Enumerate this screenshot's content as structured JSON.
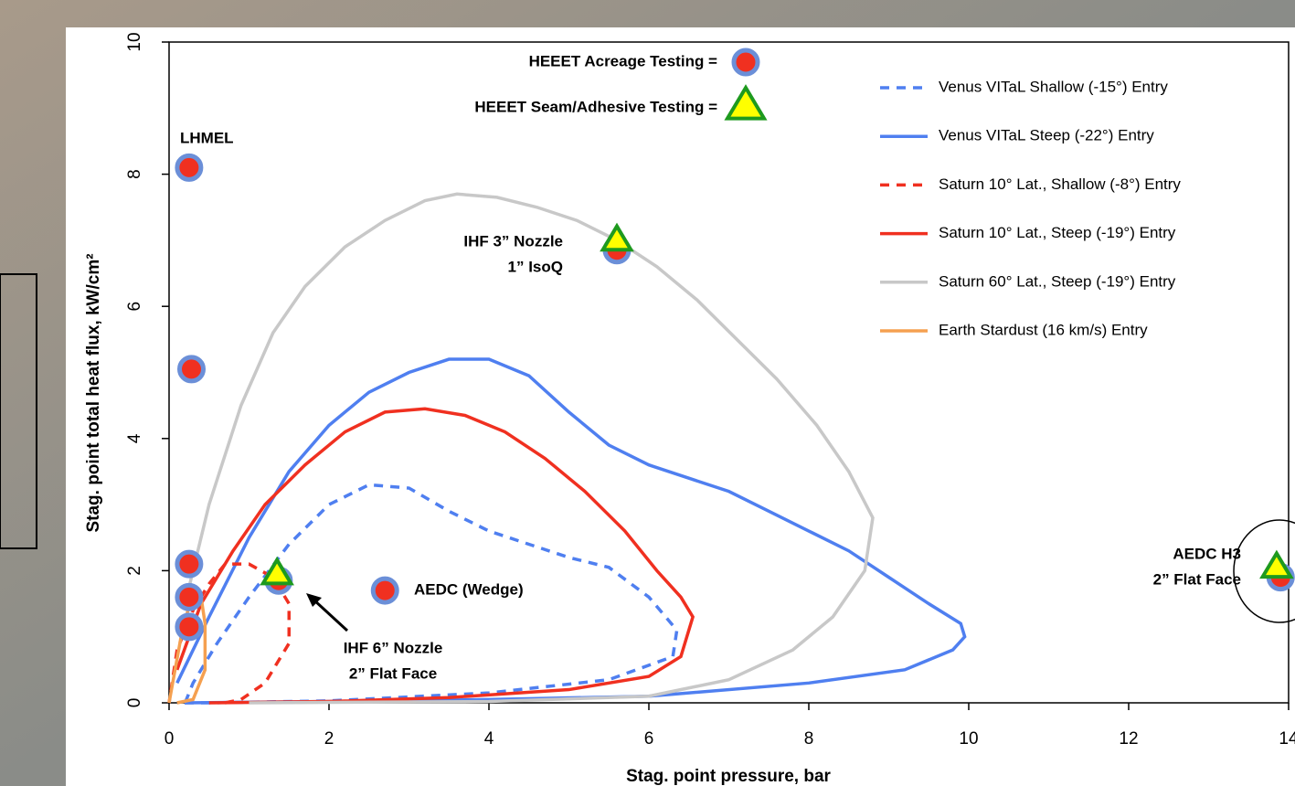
{
  "chart_data": {
    "type": "line",
    "xlabel": "Stag. point pressure, bar",
    "ylabel": "Stag. point total heat flux, kW/cm²",
    "xlim": [
      0,
      14
    ],
    "xticks": [
      0,
      2,
      4,
      6,
      8,
      10,
      12,
      14
    ],
    "ylim": [
      0,
      10
    ],
    "yticks": [
      0,
      2,
      4,
      6,
      8,
      10
    ],
    "series": [
      {
        "name": "Venus VITaL Shallow (-15°) Entry",
        "color": "#4f7ff0",
        "dashed": true,
        "x": [
          0.2,
          0.3,
          0.6,
          1,
          1.5,
          2,
          2.5,
          3,
          3.5,
          4,
          4.5,
          5,
          5.5,
          6,
          6.35,
          6.3,
          5.5,
          4,
          2,
          0.5,
          0.1
        ],
        "values": [
          0,
          0.3,
          0.9,
          1.6,
          2.4,
          3.0,
          3.3,
          3.25,
          2.9,
          2.6,
          2.4,
          2.2,
          2.05,
          1.6,
          1.1,
          0.7,
          0.35,
          0.15,
          0.03,
          0,
          0
        ]
      },
      {
        "name": "Venus VITaL Steep (-22°) Entry",
        "color": "#4f7ff0",
        "dashed": false,
        "x": [
          0.1,
          0.5,
          1,
          1.5,
          2,
          2.5,
          3,
          3.5,
          4,
          4.5,
          5,
          5.5,
          6,
          6.5,
          7,
          7.5,
          8,
          8.5,
          9,
          9.5,
          9.9,
          9.95,
          9.8,
          9.2,
          8,
          6,
          4,
          2,
          0.2
        ],
        "values": [
          0.3,
          1.3,
          2.5,
          3.5,
          4.2,
          4.7,
          5.0,
          5.2,
          5.2,
          4.95,
          4.4,
          3.9,
          3.6,
          3.4,
          3.2,
          2.9,
          2.6,
          2.3,
          1.9,
          1.5,
          1.2,
          1.0,
          0.8,
          0.5,
          0.3,
          0.1,
          0.05,
          0.02,
          0
        ]
      },
      {
        "name": "Saturn 10° Lat., Shallow (-8°) Entry",
        "color": "#f03020",
        "dashed": true,
        "x": [
          0.7,
          0.9,
          1.2,
          1.5,
          1.5,
          1.3,
          1,
          0.7,
          0.5,
          0.3,
          0.1,
          0
        ],
        "values": [
          0,
          0.05,
          0.3,
          0.9,
          1.5,
          1.9,
          2.1,
          2.1,
          1.8,
          1.4,
          0.8,
          0
        ]
      },
      {
        "name": "Saturn 10° Lat., Steep (-19°) Entry",
        "color": "#f03020",
        "dashed": false,
        "x": [
          0.1,
          0.4,
          0.8,
          1.2,
          1.7,
          2.2,
          2.7,
          3.2,
          3.7,
          4.2,
          4.7,
          5.2,
          5.7,
          6.1,
          6.4,
          6.55,
          6.4,
          6,
          5,
          3.5,
          2,
          0.5
        ],
        "values": [
          0.5,
          1.5,
          2.3,
          3.0,
          3.6,
          4.1,
          4.4,
          4.45,
          4.35,
          4.1,
          3.7,
          3.2,
          2.6,
          2.0,
          1.6,
          1.3,
          0.7,
          0.4,
          0.2,
          0.08,
          0.02,
          0
        ]
      },
      {
        "name": "Saturn 60° Lat., Steep (-19°) Entry",
        "color": "#c8c8c8",
        "dashed": false,
        "x": [
          0.2,
          0.5,
          0.9,
          1.3,
          1.7,
          2.2,
          2.7,
          3.2,
          3.6,
          4.1,
          4.6,
          5.1,
          5.6,
          6.1,
          6.6,
          7.1,
          7.6,
          8.1,
          8.5,
          8.8,
          8.7,
          8.3,
          7.8,
          7,
          6,
          4,
          1
        ],
        "values": [
          1.5,
          3,
          4.5,
          5.6,
          6.3,
          6.9,
          7.3,
          7.6,
          7.7,
          7.65,
          7.5,
          7.3,
          7.0,
          6.6,
          6.1,
          5.5,
          4.9,
          4.2,
          3.5,
          2.8,
          2.0,
          1.3,
          0.8,
          0.35,
          0.1,
          0.02,
          0
        ]
      },
      {
        "name": "Earth Stardust (16 km/s) Entry",
        "color": "#f5a050",
        "dashed": false,
        "x": [
          0.1,
          0.3,
          0.45,
          0.45,
          0.4,
          0.3,
          0.15,
          0
        ],
        "values": [
          0,
          0.05,
          0.5,
          1.2,
          1.6,
          1.7,
          1.0,
          0
        ]
      },
      {
        "name": "HEEET Acreage Testing =",
        "marker": "circle",
        "color": "#f03020",
        "edge": "#6b8fd8",
        "x": [
          0.25,
          0.28,
          0.25,
          0.25,
          0.25,
          1.37,
          5.6,
          2.7,
          13.9
        ],
        "values": [
          8.1,
          5.05,
          2.1,
          1.6,
          1.15,
          1.85,
          6.85,
          1.7,
          1.9
        ]
      },
      {
        "name": "HEEET Seam/Adhesive Testing =",
        "marker": "triangle",
        "color": "#ffff00",
        "edge": "#1e9a1e",
        "x": [
          1.35,
          5.6,
          13.85
        ],
        "values": [
          1.95,
          7.0,
          2.05
        ]
      }
    ],
    "annotations": [
      [
        "LHMEL"
      ],
      [
        "IHF 3” Nozzle",
        "1” IsoQ"
      ],
      [
        "AEDC (Wedge)"
      ],
      [
        "IHF 6” Nozzle",
        "2” Flat Face"
      ],
      [
        "AEDC H3",
        "2” Flat Face"
      ]
    ]
  }
}
